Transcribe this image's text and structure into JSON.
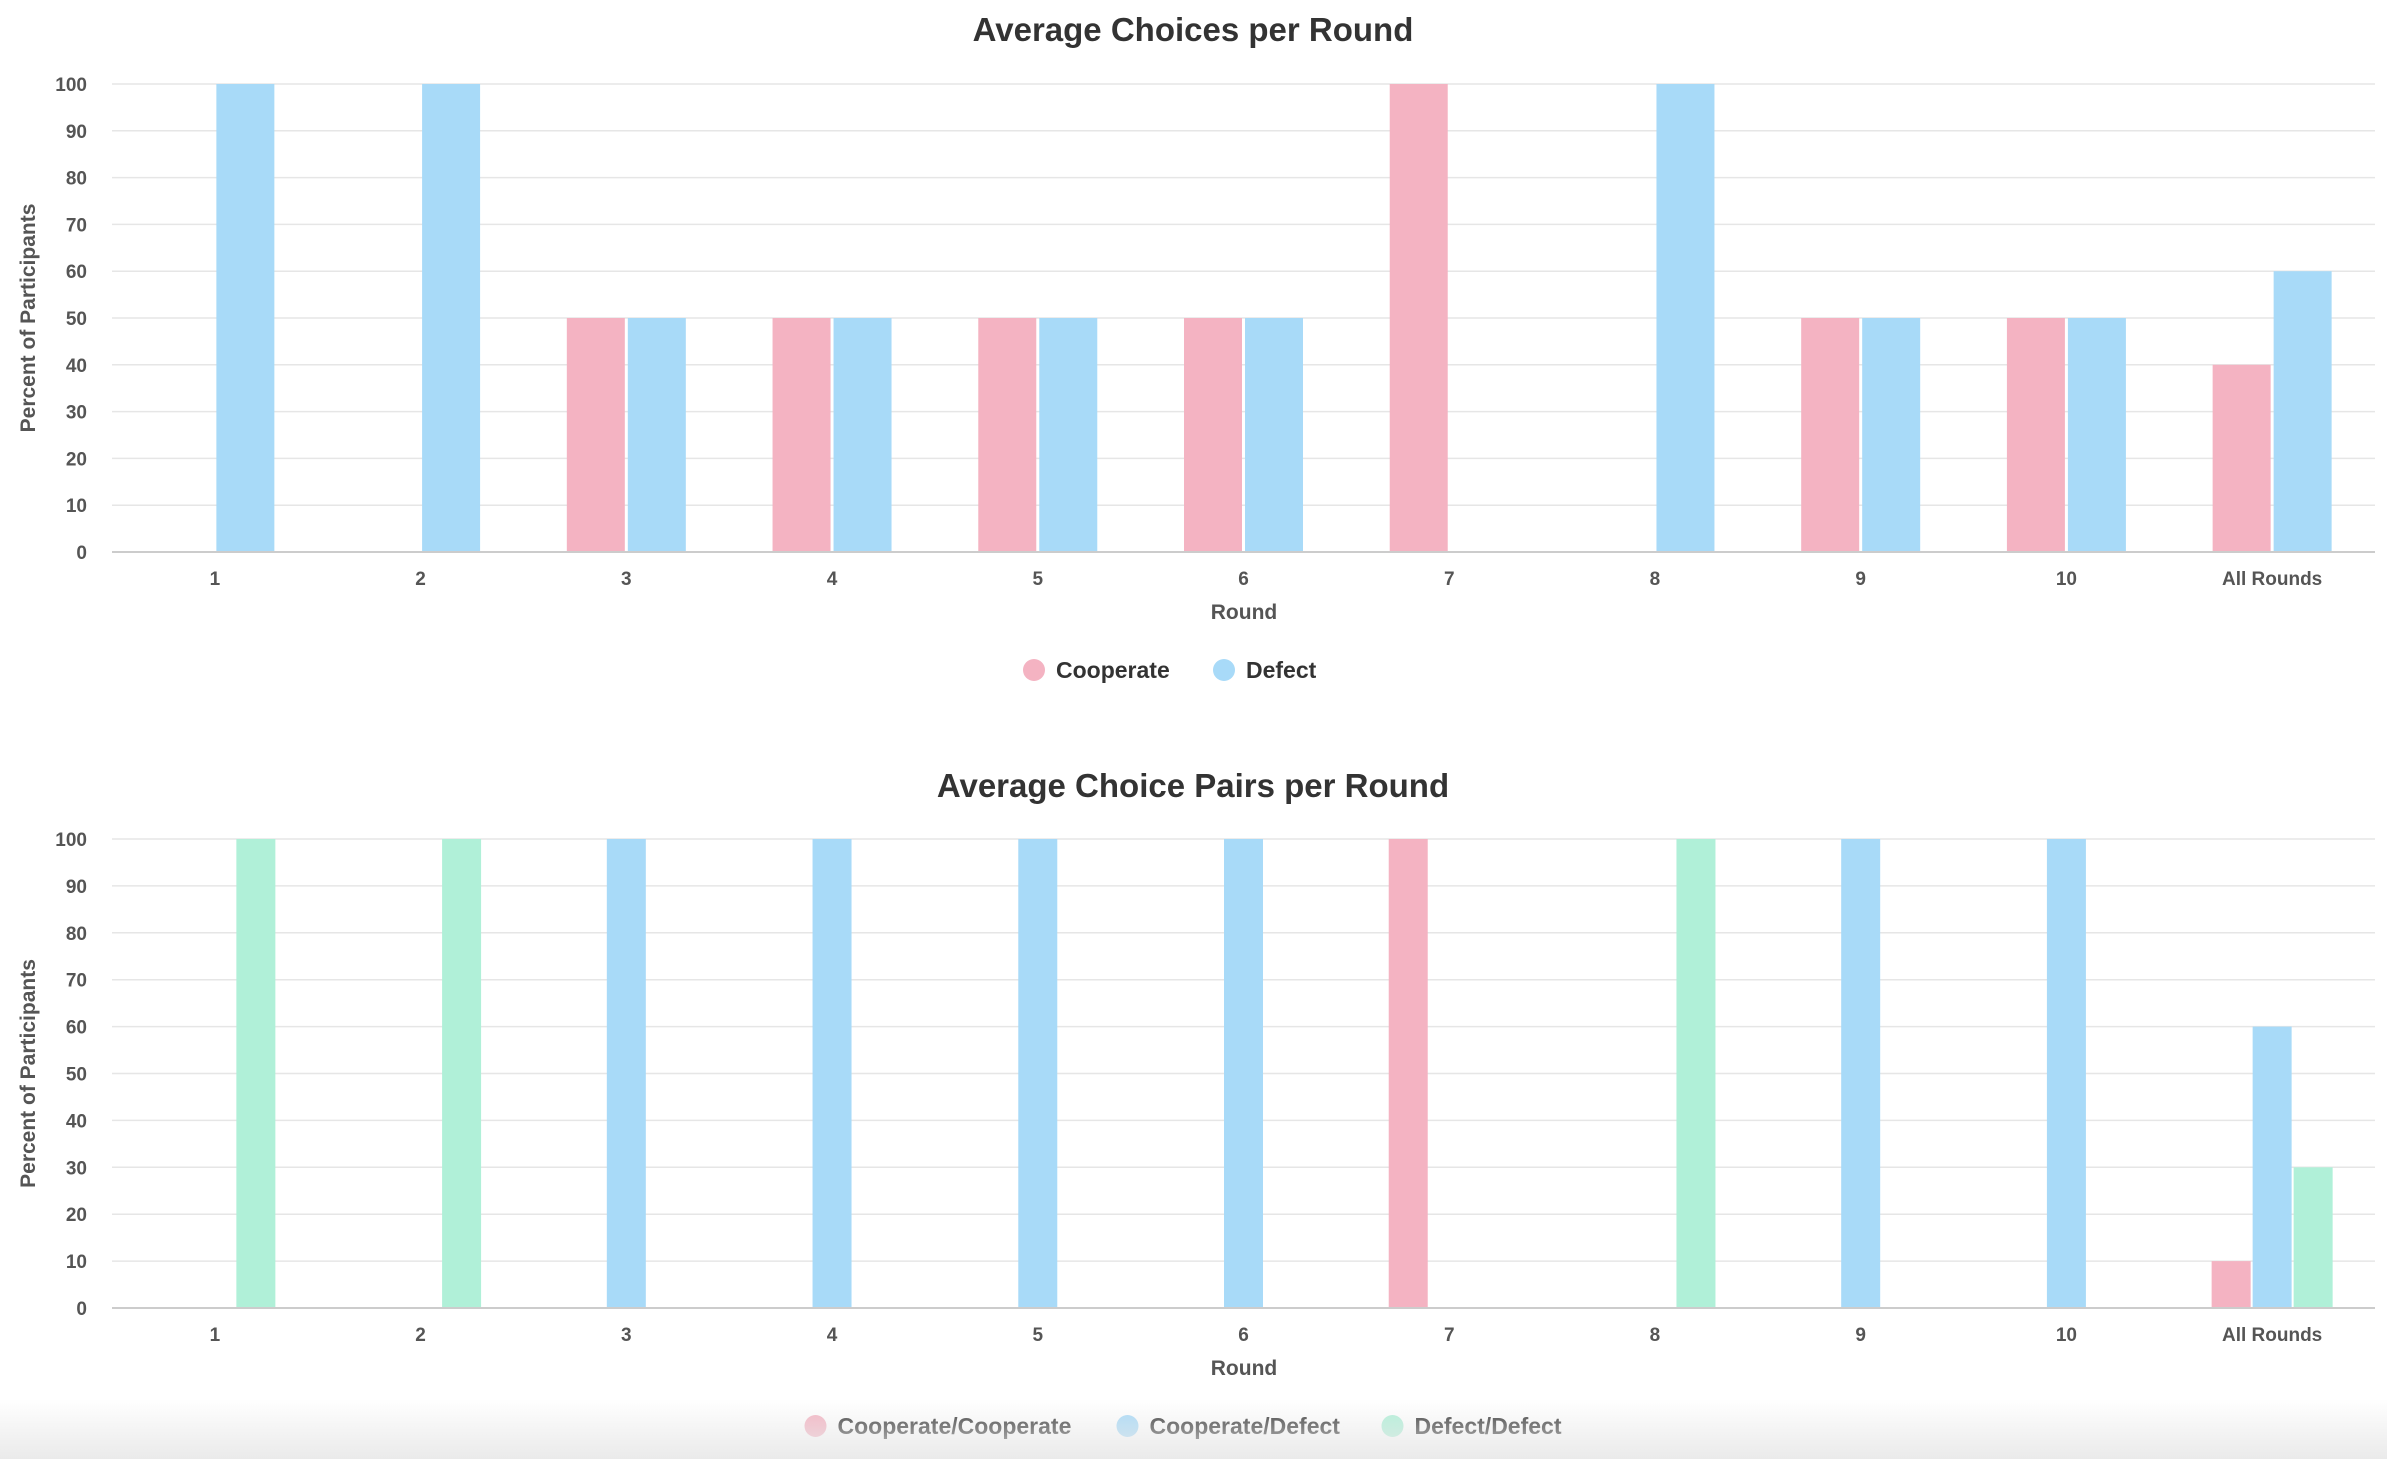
{
  "chart_data": [
    {
      "type": "bar",
      "title": "Average Choices per Round",
      "xlabel": "Round",
      "ylabel": "Percent of Participants",
      "ylim": [
        0,
        100
      ],
      "yticks": [
        "0",
        "10",
        "20",
        "30",
        "40",
        "50",
        "60",
        "70",
        "80",
        "90",
        "100"
      ],
      "categories": [
        "1",
        "2",
        "3",
        "4",
        "5",
        "6",
        "7",
        "8",
        "9",
        "10",
        "All Rounds"
      ],
      "grid": true,
      "legend_position": "bottom-center",
      "series": [
        {
          "name": "Cooperate",
          "color": "#f4b3c2",
          "values": [
            0,
            0,
            50,
            50,
            50,
            50,
            100,
            0,
            50,
            50,
            40
          ]
        },
        {
          "name": "Defect",
          "color": "#a8daf8",
          "values": [
            100,
            100,
            50,
            50,
            50,
            50,
            0,
            100,
            50,
            50,
            60
          ]
        }
      ]
    },
    {
      "type": "bar",
      "title": "Average Choice Pairs per Round",
      "xlabel": "Round",
      "ylabel": "Percent of Participants",
      "ylim": [
        0,
        100
      ],
      "yticks": [
        "0",
        "10",
        "20",
        "30",
        "40",
        "50",
        "60",
        "70",
        "80",
        "90",
        "100"
      ],
      "categories": [
        "1",
        "2",
        "3",
        "4",
        "5",
        "6",
        "7",
        "8",
        "9",
        "10",
        "All Rounds"
      ],
      "grid": true,
      "legend_position": "bottom-center",
      "series": [
        {
          "name": "Cooperate/Cooperate",
          "color": "#f4b3c2",
          "values": [
            0,
            0,
            0,
            0,
            0,
            0,
            100,
            0,
            0,
            0,
            10
          ]
        },
        {
          "name": "Cooperate/Defect",
          "color": "#a8daf8",
          "values": [
            0,
            0,
            100,
            100,
            100,
            100,
            0,
            0,
            100,
            100,
            60
          ]
        },
        {
          "name": "Defect/Defect",
          "color": "#b0f0d8",
          "values": [
            100,
            100,
            0,
            0,
            0,
            0,
            0,
            100,
            0,
            0,
            30
          ]
        }
      ]
    }
  ]
}
